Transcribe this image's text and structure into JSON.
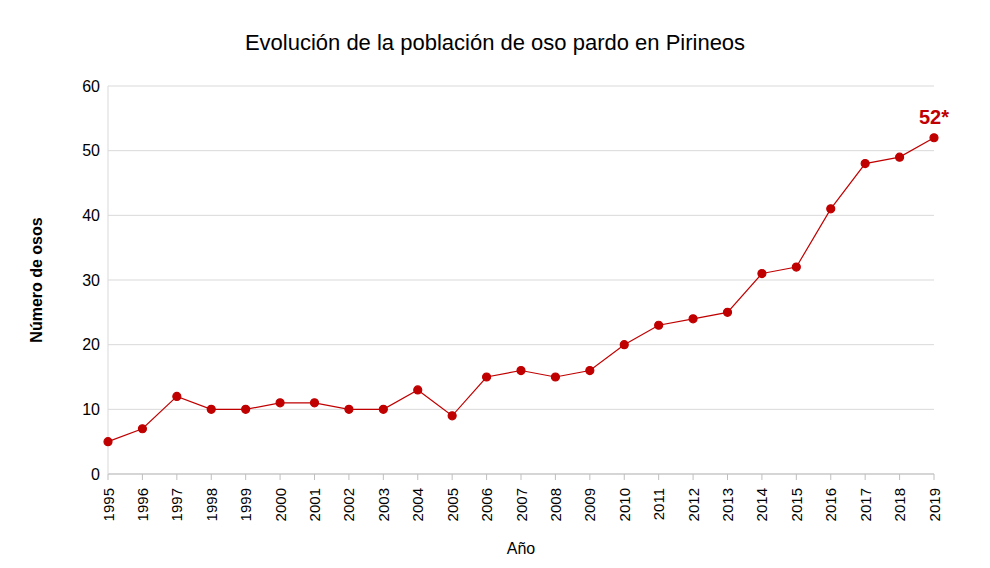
{
  "chart_data": {
    "type": "line",
    "title": "Evolución de la población de oso pardo en Pirineos",
    "x_label": "Año",
    "y_label": "Número de osos",
    "categories": [
      "1995",
      "1996",
      "1997",
      "1998",
      "1999",
      "2000",
      "2001",
      "2002",
      "2003",
      "2004",
      "2005",
      "2006",
      "2007",
      "2008",
      "2009",
      "2010",
      "2011",
      "2012",
      "2013",
      "2014",
      "2015",
      "2016",
      "2017",
      "2018",
      "2019"
    ],
    "values": [
      5,
      7,
      12,
      10,
      10,
      11,
      11,
      10,
      10,
      13,
      9,
      15,
      16,
      15,
      16,
      20,
      23,
      24,
      25,
      31,
      32,
      41,
      48,
      49,
      52
    ],
    "color": "#c00000",
    "marker": "circle",
    "ylim": [
      0,
      60
    ],
    "yticks": [
      0,
      10,
      20,
      30,
      40,
      50,
      60
    ],
    "grid": true,
    "annotations": [
      {
        "x": "2019",
        "y": 52,
        "text": "52*"
      }
    ]
  }
}
